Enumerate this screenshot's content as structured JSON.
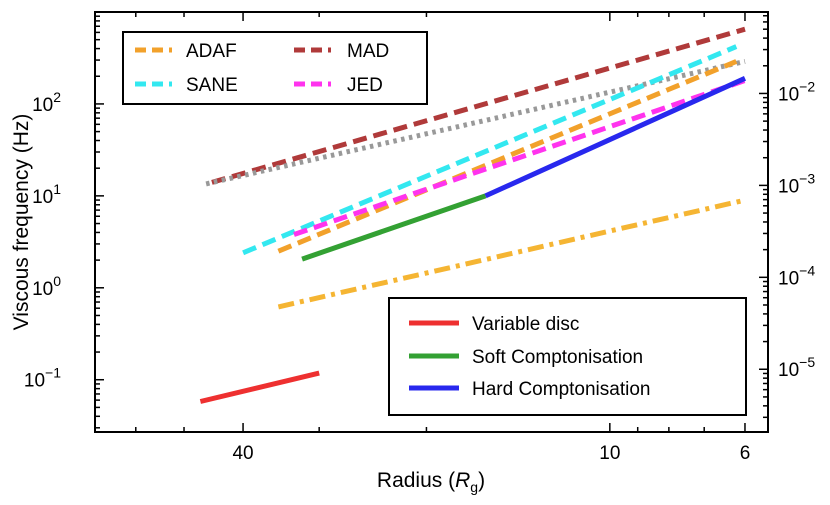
{
  "chart_data": {
    "type": "line",
    "title": "",
    "xlabel": "Radius (",
    "xlabel_symbol": "R",
    "xlabel_sub": "g",
    "xlabel_tail": ")",
    "ylabel": "Viscous frequency (Hz)",
    "x_scale": "log",
    "x_reversed": true,
    "xlim": [
      70,
      5.5
    ],
    "ylim": [
      0.027,
      1000
    ],
    "y_scale": "log",
    "x_ticks": [
      {
        "value": 40,
        "label": "40"
      },
      {
        "value": 10,
        "label": "10"
      },
      {
        "value": 6,
        "label": "6"
      }
    ],
    "y_ticks_left": [
      {
        "base": "10",
        "exp": "−1",
        "value": 0.1
      },
      {
        "base": "10",
        "exp": "0",
        "value": 1
      },
      {
        "base": "10",
        "exp": "1",
        "value": 10
      },
      {
        "base": "10",
        "exp": "2",
        "value": 100
      }
    ],
    "y_ticks_right": [
      {
        "base": "10",
        "exp": "−5",
        "value": 0.13
      },
      {
        "base": "10",
        "exp": "−4",
        "value": 1.3
      },
      {
        "base": "10",
        "exp": "−3",
        "value": 13
      },
      {
        "base": "10",
        "exp": "−2",
        "value": 130
      }
    ],
    "series": [
      {
        "name": "MAD",
        "color": "#b03a3a",
        "dash": "dashed",
        "x": [
          45,
          6
        ],
        "y": [
          14,
          650
        ]
      },
      {
        "name": "Dotted reference",
        "color": "#999999",
        "dash": "dotted",
        "x": [
          46,
          6
        ],
        "y": [
          13.5,
          290
        ]
      },
      {
        "name": "SANE",
        "color": "#33e8f0",
        "dash": "dashed",
        "x": [
          40,
          6.2
        ],
        "y": [
          2.4,
          420
        ]
      },
      {
        "name": "ADAF",
        "color": "#f2a12b",
        "dash": "dashed",
        "x": [
          35,
          6.2
        ],
        "y": [
          2.5,
          290
        ]
      },
      {
        "name": "JED",
        "color": "#ff33ee",
        "dash": "dashed",
        "x": [
          33,
          6
        ],
        "y": [
          3.8,
          180
        ]
      },
      {
        "name": "ADAF (dash-dot)",
        "color": "#f5b533",
        "dash": "dashdot",
        "x": [
          35,
          6
        ],
        "y": [
          0.62,
          9
        ]
      },
      {
        "name": "Variable disc",
        "color": "#ee3030",
        "x": [
          47,
          30
        ],
        "y": [
          0.058,
          0.118
        ]
      },
      {
        "name": "Soft Comptonisation",
        "color": "#33a133",
        "x": [
          32,
          16
        ],
        "y": [
          2.05,
          10
        ]
      },
      {
        "name": "Hard Comptonisation",
        "color": "#2828ee",
        "x": [
          16,
          6
        ],
        "y": [
          10,
          190
        ]
      }
    ],
    "legend_top": [
      {
        "label": "ADAF",
        "color": "#f2a12b"
      },
      {
        "label": "MAD",
        "color": "#b03a3a"
      },
      {
        "label": "SANE",
        "color": "#33e8f0"
      },
      {
        "label": "JED",
        "color": "#ff33ee"
      }
    ],
    "legend_bottom": [
      {
        "label": "Variable disc",
        "color": "#ee3030"
      },
      {
        "label": "Soft Comptonisation",
        "color": "#33a133"
      },
      {
        "label": "Hard Comptonisation",
        "color": "#2828ee"
      }
    ]
  }
}
